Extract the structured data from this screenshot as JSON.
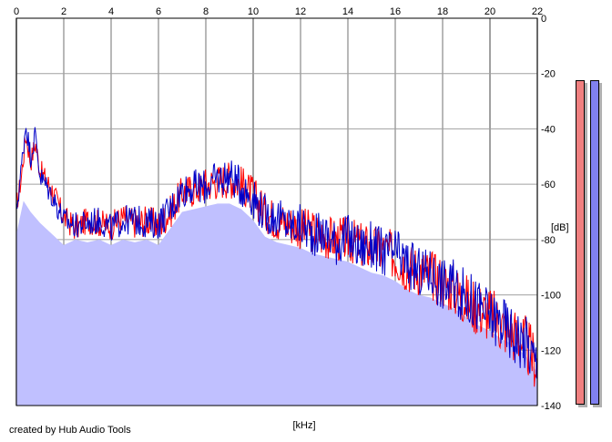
{
  "chart_data": {
    "type": "area",
    "xlabel": "[kHz]",
    "ylabel": "[dB]",
    "xlim": [
      0,
      22
    ],
    "ylim": [
      -140,
      0
    ],
    "x_ticks": [
      "0",
      "2",
      "4",
      "6",
      "8",
      "10",
      "12",
      "14",
      "16",
      "18",
      "20",
      "22"
    ],
    "y_ticks": [
      "0",
      "-20",
      "-40",
      "-60",
      "-80",
      "-100",
      "-120",
      "-140"
    ],
    "grid": true,
    "series": [
      {
        "color": "#ff0000",
        "x": [
          0,
          0.2,
          0.4,
          0.6,
          0.8,
          1,
          1.5,
          2,
          2.5,
          3,
          3.5,
          4,
          4.5,
          5,
          5.5,
          6,
          6.5,
          7,
          7.5,
          8,
          8.5,
          9,
          9.5,
          10,
          10.5,
          11,
          11.5,
          12,
          12.5,
          13,
          13.5,
          14,
          14.5,
          15,
          15.5,
          16,
          16.5,
          17,
          17.5,
          18,
          18.5,
          19,
          19.5,
          20,
          20.5,
          21,
          21.5,
          22
        ],
        "values": [
          -68,
          -58,
          -42,
          -52,
          -45,
          -55,
          -62,
          -72,
          -76,
          -73,
          -74,
          -75,
          -72,
          -74,
          -73,
          -75,
          -70,
          -63,
          -62,
          -60,
          -59,
          -58,
          -60,
          -64,
          -70,
          -73,
          -74,
          -76,
          -77,
          -79,
          -80,
          -80,
          -82,
          -83,
          -84,
          -86,
          -90,
          -91,
          -93,
          -95,
          -98,
          -102,
          -105,
          -107,
          -111,
          -114,
          -118,
          -125
        ]
      },
      {
        "color": "#0000c8",
        "x": [
          0,
          0.2,
          0.4,
          0.6,
          0.8,
          1,
          1.5,
          2,
          2.5,
          3,
          3.5,
          4,
          4.5,
          5,
          5.5,
          6,
          6.5,
          7,
          7.5,
          8,
          8.5,
          9,
          9.5,
          10,
          10.5,
          11,
          11.5,
          12,
          12.5,
          13,
          13.5,
          14,
          14.5,
          15,
          15.5,
          16,
          16.5,
          17,
          17.5,
          18,
          18.5,
          19,
          19.5,
          20,
          20.5,
          21,
          21.5,
          22
        ],
        "values": [
          -70,
          -55,
          -38,
          -50,
          -42,
          -57,
          -64,
          -73,
          -75,
          -74,
          -73,
          -76,
          -73,
          -73,
          -74,
          -74,
          -69,
          -62,
          -61,
          -61,
          -58,
          -57,
          -61,
          -65,
          -71,
          -72,
          -75,
          -75,
          -78,
          -78,
          -81,
          -79,
          -83,
          -82,
          -85,
          -85,
          -89,
          -92,
          -92,
          -96,
          -97,
          -101,
          -104,
          -108,
          -110,
          -115,
          -117,
          -126
        ]
      }
    ],
    "floor": {
      "color": "#c0c0ff",
      "x": [
        0,
        0.3,
        0.6,
        1,
        1.5,
        2,
        2.5,
        3,
        3.5,
        4,
        4.5,
        5,
        5.5,
        6,
        6.5,
        7,
        7.5,
        8,
        8.5,
        9,
        9.5,
        10,
        10.5,
        11,
        11.5,
        12,
        12.5,
        13,
        13.5,
        14,
        14.5,
        15,
        15.5,
        16,
        16.5,
        17,
        17.5,
        18,
        18.5,
        19,
        19.5,
        20,
        20.5,
        21,
        21.5,
        22
      ],
      "values": [
        -78,
        -66,
        -70,
        -74,
        -78,
        -82,
        -80,
        -81,
        -80,
        -82,
        -80,
        -81,
        -80,
        -82,
        -76,
        -70,
        -69,
        -68,
        -67,
        -67,
        -69,
        -73,
        -79,
        -81,
        -82,
        -83,
        -85,
        -86,
        -87,
        -88,
        -90,
        -92,
        -93,
        -95,
        -98,
        -100,
        -101,
        -103,
        -105,
        -108,
        -111,
        -113,
        -116,
        -118,
        -122,
        -128
      ]
    }
  },
  "meters": [
    {
      "color": "#f08080"
    },
    {
      "color": "#8080f0"
    }
  ],
  "credit": "created by Hub Audio Tools"
}
